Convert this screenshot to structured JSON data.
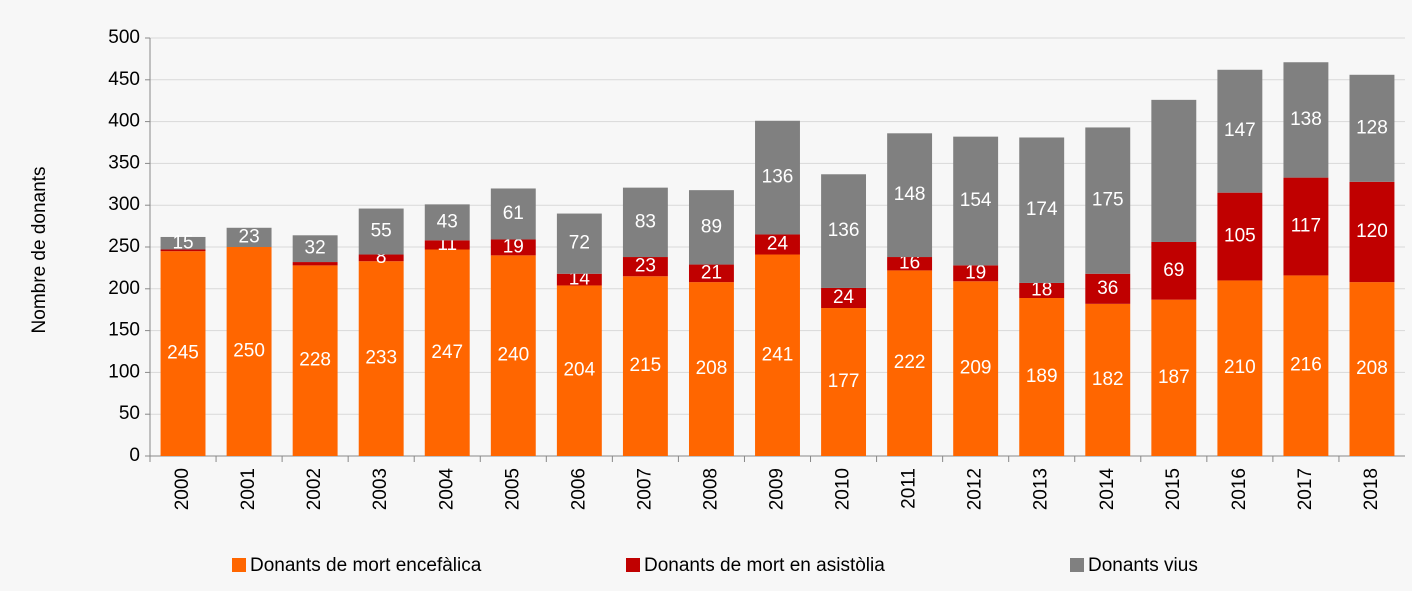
{
  "chart_data": {
    "type": "stacked_bar",
    "y_label": "Nombre de donants",
    "categories": [
      "2000",
      "2001",
      "2002",
      "2003",
      "2004",
      "2005",
      "2006",
      "2007",
      "2008",
      "2009",
      "2010",
      "2011",
      "2012",
      "2013",
      "2014",
      "2015",
      "2016",
      "2017",
      "2018"
    ],
    "series": [
      {
        "name": "Donants de mort encefàlica",
        "color": "#ff6600",
        "values": [
          245,
          250,
          228,
          233,
          247,
          240,
          204,
          215,
          208,
          241,
          177,
          222,
          209,
          189,
          182,
          187,
          210,
          216,
          208
        ]
      },
      {
        "name": "Donants de mort en asistòlia",
        "color": "#c00000",
        "values": [
          2,
          0,
          4,
          8,
          11,
          19,
          14,
          23,
          21,
          24,
          24,
          16,
          19,
          18,
          36,
          69,
          105,
          117,
          120
        ],
        "value_labels": [
          null,
          null,
          null,
          "8",
          "11",
          "19",
          "14",
          "23",
          "21",
          "24",
          "24",
          "16",
          "19",
          "18",
          "36",
          "69",
          "105",
          "117",
          "120"
        ]
      },
      {
        "name": "Donants vius",
        "color": "#808080",
        "values": [
          15,
          23,
          32,
          55,
          43,
          61,
          72,
          83,
          89,
          136,
          136,
          148,
          154,
          174,
          175,
          170,
          147,
          138,
          128
        ],
        "value_labels": [
          "15",
          "23",
          "32",
          "55",
          "43",
          "61",
          "72",
          "83",
          "89",
          "136",
          "136",
          "148",
          "154",
          "174",
          "175",
          null,
          "147",
          "138",
          "128"
        ]
      }
    ],
    "ylim": [
      0,
      500
    ],
    "yticks": [
      0,
      50,
      100,
      150,
      200,
      250,
      300,
      350,
      400,
      450,
      500
    ],
    "grid": true,
    "legend": "bottom"
  }
}
